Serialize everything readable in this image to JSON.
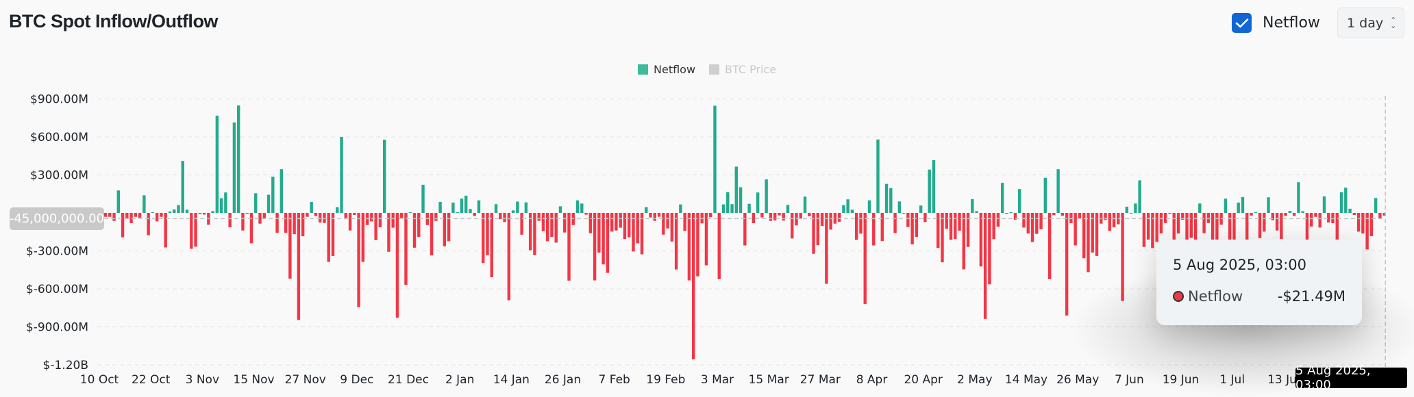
{
  "header": {
    "title": "BTC Spot Inflow/Outflow",
    "netflow_toggle": {
      "label": "Netflow",
      "checked": true
    },
    "interval_select": {
      "value": "1 day"
    }
  },
  "legend": [
    {
      "label": "Netflow",
      "color": "#26a98b",
      "active": true
    },
    {
      "label": "BTC Price",
      "color": "#cccccc",
      "active": false
    }
  ],
  "crosshair": {
    "y_label": "-45,000,000.00",
    "x_label": "5 Aug 2025, 03:00"
  },
  "tooltip": {
    "date": "5 Aug 2025, 03:00",
    "series": "Netflow",
    "value": "-$21.49M"
  },
  "colors": {
    "positive": "#22ab8c",
    "negative": "#f23645"
  },
  "chart_data": {
    "type": "bar",
    "title": "BTC Spot Inflow/Outflow",
    "series": [
      {
        "name": "Netflow",
        "unit": "USD millions"
      }
    ],
    "ylim": [
      -1200,
      900
    ],
    "y_ticks": [
      {
        "value": 900,
        "label": "$900.00M"
      },
      {
        "value": 600,
        "label": "$600.00M"
      },
      {
        "value": 300,
        "label": "$300.00M"
      },
      {
        "value": -300,
        "label": "$-300.00M"
      },
      {
        "value": -600,
        "label": "$-600.00M"
      },
      {
        "value": -900,
        "label": "$-900.00M"
      },
      {
        "value": -1200,
        "label": "$-1.20B"
      }
    ],
    "x_ticks": [
      "10 Oct",
      "22 Oct",
      "3 Nov",
      "15 Nov",
      "27 Nov",
      "9 Dec",
      "21 Dec",
      "2 Jan",
      "14 Jan",
      "26 Jan",
      "7 Feb",
      "19 Feb",
      "3 Mar",
      "15 Mar",
      "27 Mar",
      "8 Apr",
      "20 Apr",
      "2 May",
      "14 May",
      "26 May",
      "7 Jun",
      "19 Jun",
      "1 Jul",
      "13 Jul"
    ],
    "x_tick_interval_days": 12,
    "grid": true,
    "legend_position": "top-center",
    "values": [
      -31,
      -31,
      -63,
      177,
      -193,
      -49,
      -81,
      -31,
      -38,
      139,
      -177,
      5,
      -67,
      -31,
      -273,
      11,
      27,
      61,
      410,
      25,
      -284,
      -267,
      -9,
      -13,
      -94,
      14,
      768,
      116,
      161,
      -114,
      714,
      848,
      -139,
      -7,
      -240,
      155,
      -85,
      -43,
      143,
      286,
      -157,
      345,
      -157,
      -520,
      -168,
      -846,
      -184,
      -31,
      87,
      -25,
      -76,
      -80,
      -387,
      -340,
      45,
      600,
      -40,
      -139,
      -16,
      -745,
      -387,
      -96,
      -67,
      -215,
      -114,
      578,
      -307,
      -117,
      -828,
      -40,
      -569,
      5,
      -275,
      -190,
      222,
      -96,
      -336,
      -63,
      87,
      -264,
      -224,
      81,
      5,
      112,
      136,
      31,
      -25,
      99,
      -396,
      -334,
      -508,
      69,
      -49,
      -72,
      -690,
      20,
      89,
      -172,
      83,
      -295,
      -334,
      -63,
      -145,
      -224,
      -190,
      -235,
      52,
      -155,
      -535,
      -96,
      99,
      74,
      -14,
      -161,
      -533,
      -314,
      -407,
      -474,
      -148,
      -139,
      -117,
      -206,
      -193,
      -305,
      -240,
      -327,
      45,
      -36,
      -63,
      -31,
      -172,
      -123,
      -226,
      -447,
      67,
      -143,
      -533,
      -1157,
      -501,
      -83,
      -414,
      -34,
      846,
      -524,
      67,
      164,
      69,
      365,
      202,
      -257,
      72,
      -81,
      161,
      -36,
      264,
      -63,
      -60,
      -20,
      -61,
      63,
      -202,
      -99,
      -45,
      128,
      -27,
      -323,
      -255,
      -103,
      -560,
      -132,
      -85,
      -70,
      61,
      107,
      25,
      -213,
      -164,
      -720,
      99,
      -257,
      580,
      -222,
      229,
      195,
      -159,
      90,
      -3,
      -112,
      -249,
      -190,
      58,
      -72,
      342,
      416,
      -277,
      -390,
      -126,
      -213,
      -206,
      -141,
      -446,
      -269,
      108,
      14,
      -423,
      -837,
      -564,
      -208,
      -110,
      237,
      -7,
      5,
      -54,
      188,
      -116,
      -163,
      -230,
      -166,
      -130,
      277,
      -524,
      -18,
      345,
      -22,
      -811,
      -81,
      -257,
      -45,
      -358,
      -468,
      -313,
      -340,
      -85,
      -56,
      -143,
      -114,
      -90,
      -696,
      49,
      -3,
      74,
      257,
      -269,
      -211,
      -278,
      -229,
      -163,
      -80,
      -7,
      -211,
      -163,
      -54,
      -211,
      -197,
      -215,
      74,
      -161,
      -80,
      -211,
      -211,
      -94,
      112,
      -211,
      -211,
      81,
      125,
      -211,
      -22,
      5,
      -199,
      -148,
      123,
      -58,
      -139,
      -206,
      -24,
      16,
      -24,
      242,
      13,
      -211,
      -108,
      -31,
      -116,
      130,
      -76,
      -81,
      -211,
      163,
      199,
      33,
      -16,
      -148,
      -163,
      -289,
      -184,
      117,
      -49,
      -21.49
    ],
    "crosshair_value": -45
  }
}
